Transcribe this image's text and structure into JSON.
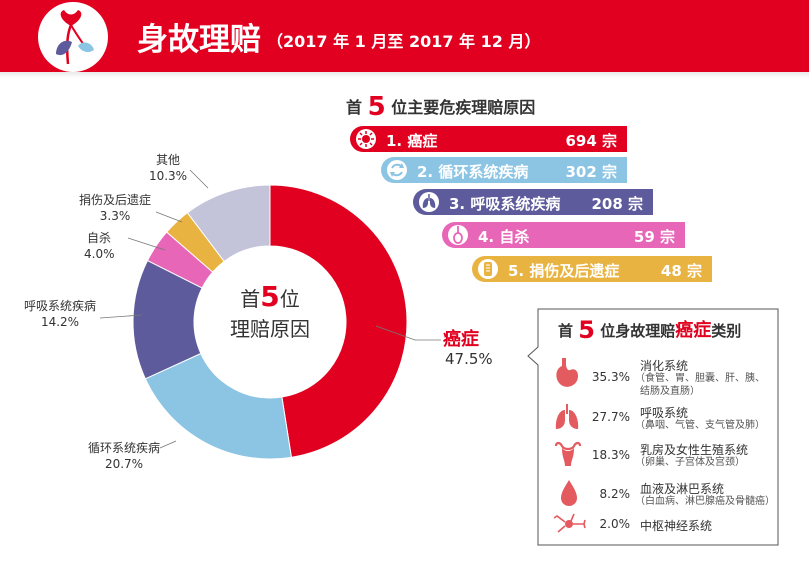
{
  "header": {
    "title": "身故理赔",
    "subtitle": "（2017 年 1 月至 2017 年 12 月）"
  },
  "top5": {
    "heading_pre": "首",
    "heading_num": "5",
    "heading_post": "位主要危疾理赔原因",
    "items": [
      {
        "label": "1. 癌症",
        "value": "694 宗",
        "color": "#e1001f",
        "icon": "cancer-cell-icon"
      },
      {
        "label": "2. 循环系统疾病",
        "value": "302 宗",
        "color": "#8cc4e4",
        "icon": "circulation-arrows-icon"
      },
      {
        "label": "3. 呼吸系统疾病",
        "value": "208 宗",
        "color": "#5e5b9c",
        "icon": "lungs-icon"
      },
      {
        "label": "4. 自杀",
        "value": "59 宗",
        "color": "#e866b7",
        "icon": "noose-icon"
      },
      {
        "label": "5. 捐伤及后遗症",
        "value": "48 宗",
        "color": "#e8b340",
        "icon": "bandage-icon"
      }
    ]
  },
  "donut": {
    "center_line1_pre": "首",
    "center_line1_num": "5",
    "center_line1_post": "位",
    "center_line2": "理赔原因"
  },
  "chart_data": {
    "type": "pie",
    "categories": [
      "癌症",
      "循环系统疾病",
      "呼吸系统疾病",
      "自杀",
      "捐伤及后遗症",
      "其他"
    ],
    "values": [
      47.5,
      20.7,
      14.2,
      4.0,
      3.3,
      10.3
    ],
    "value_labels": [
      "47.5%",
      "20.7%",
      "14.2%",
      "4.0%",
      "3.3%",
      "10.3%"
    ],
    "colors": [
      "#e1001f",
      "#8cc4e4",
      "#5e5b9c",
      "#e866b7",
      "#e8b340",
      "#c3c3da"
    ],
    "donut": true
  },
  "cancer_types": {
    "title_pre": "首",
    "title_num": "5",
    "title_mid": "位身故理赔",
    "title_red": "癌症",
    "title_post": "类别",
    "items": [
      {
        "pct": "35.3%",
        "name": "消化系统",
        "sub": "（食管、胃、胆囊、肝、胰、",
        "sub2": "结肠及直肠）",
        "icon": "stomach-icon"
      },
      {
        "pct": "27.7%",
        "name": "呼吸系统",
        "sub": "（鼻咽、气管、支气管及肺）",
        "sub2": "",
        "icon": "lungs-organ-icon"
      },
      {
        "pct": "18.3%",
        "name": "乳房及女性生殖系统",
        "sub": "（卵巢、子宫体及宫颈）",
        "sub2": "",
        "icon": "uterus-icon"
      },
      {
        "pct": "8.2%",
        "name": "血液及淋巴系统",
        "sub": "（白血病、淋巴腺癌及骨髓癌）",
        "sub2": "",
        "icon": "blood-drop-icon"
      },
      {
        "pct": "2.0%",
        "name": "中枢神经系统",
        "sub": "",
        "sub2": "",
        "icon": "neuron-icon"
      }
    ]
  }
}
